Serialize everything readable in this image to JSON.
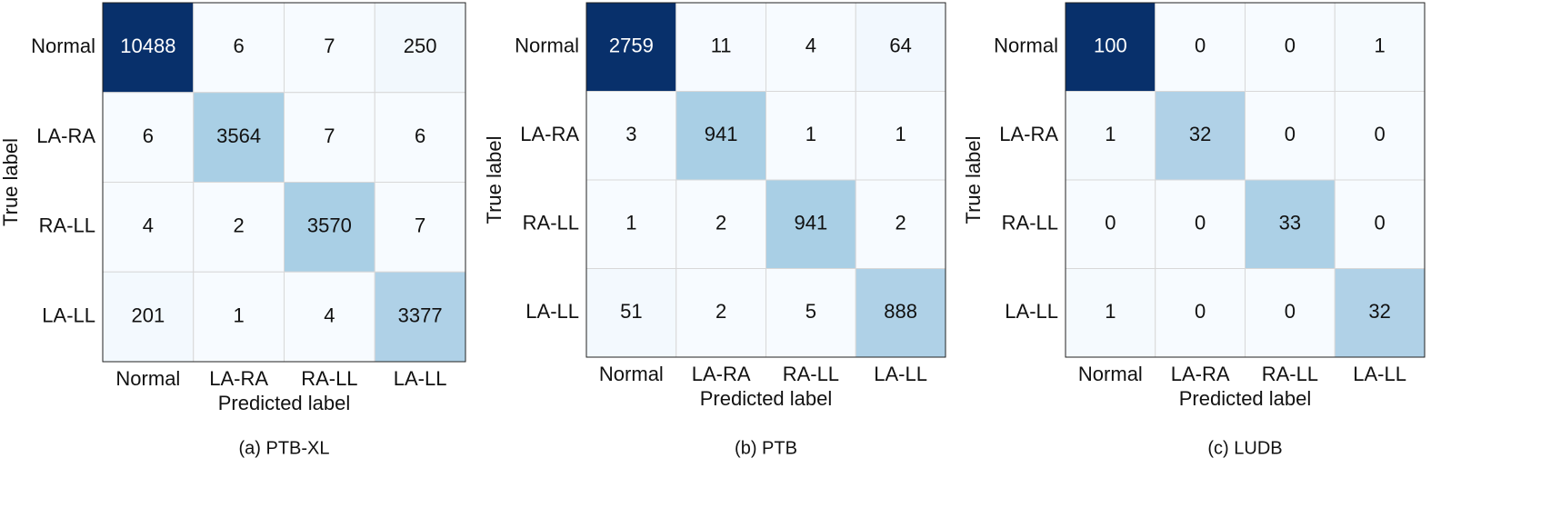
{
  "chart_data": [
    {
      "type": "heatmap",
      "title": "(a) PTB-XL",
      "x_label": "Predicted label",
      "y_label": "True label",
      "x_categories": [
        "Normal",
        "LA-RA",
        "RA-LL",
        "LA-LL"
      ],
      "y_categories": [
        "Normal",
        "LA-RA",
        "RA-LL",
        "LA-LL"
      ],
      "values": [
        [
          10488,
          6,
          7,
          250
        ],
        [
          6,
          3564,
          7,
          6
        ],
        [
          4,
          2,
          3570,
          7
        ],
        [
          201,
          1,
          4,
          3377
        ]
      ],
      "colormap": [
        "#f7fbff",
        "#deebf7",
        "#c6dbef",
        "#9ecae1",
        "#6baed6",
        "#4292c6",
        "#2171b5",
        "#08519c",
        "#08306b"
      ]
    },
    {
      "type": "heatmap",
      "title": "(b) PTB",
      "x_label": "Predicted label",
      "y_label": "True label",
      "x_categories": [
        "Normal",
        "LA-RA",
        "RA-LL",
        "LA-LL"
      ],
      "y_categories": [
        "Normal",
        "LA-RA",
        "RA-LL",
        "LA-LL"
      ],
      "values": [
        [
          2759,
          11,
          4,
          64
        ],
        [
          3,
          941,
          1,
          1
        ],
        [
          1,
          2,
          941,
          2
        ],
        [
          51,
          2,
          5,
          888
        ]
      ],
      "colormap": [
        "#f7fbff",
        "#deebf7",
        "#c6dbef",
        "#9ecae1",
        "#6baed6",
        "#4292c6",
        "#2171b5",
        "#08519c",
        "#08306b"
      ]
    },
    {
      "type": "heatmap",
      "title": "(c) LUDB",
      "x_label": "Predicted label",
      "y_label": "True label",
      "x_categories": [
        "Normal",
        "LA-RA",
        "RA-LL",
        "LA-LL"
      ],
      "y_categories": [
        "Normal",
        "LA-RA",
        "RA-LL",
        "LA-LL"
      ],
      "values": [
        [
          100,
          0,
          0,
          1
        ],
        [
          1,
          32,
          0,
          0
        ],
        [
          0,
          0,
          33,
          0
        ],
        [
          1,
          0,
          0,
          32
        ]
      ],
      "colormap": [
        "#f7fbff",
        "#deebf7",
        "#c6dbef",
        "#9ecae1",
        "#6baed6",
        "#4292c6",
        "#2171b5",
        "#08519c",
        "#08306b"
      ]
    }
  ]
}
